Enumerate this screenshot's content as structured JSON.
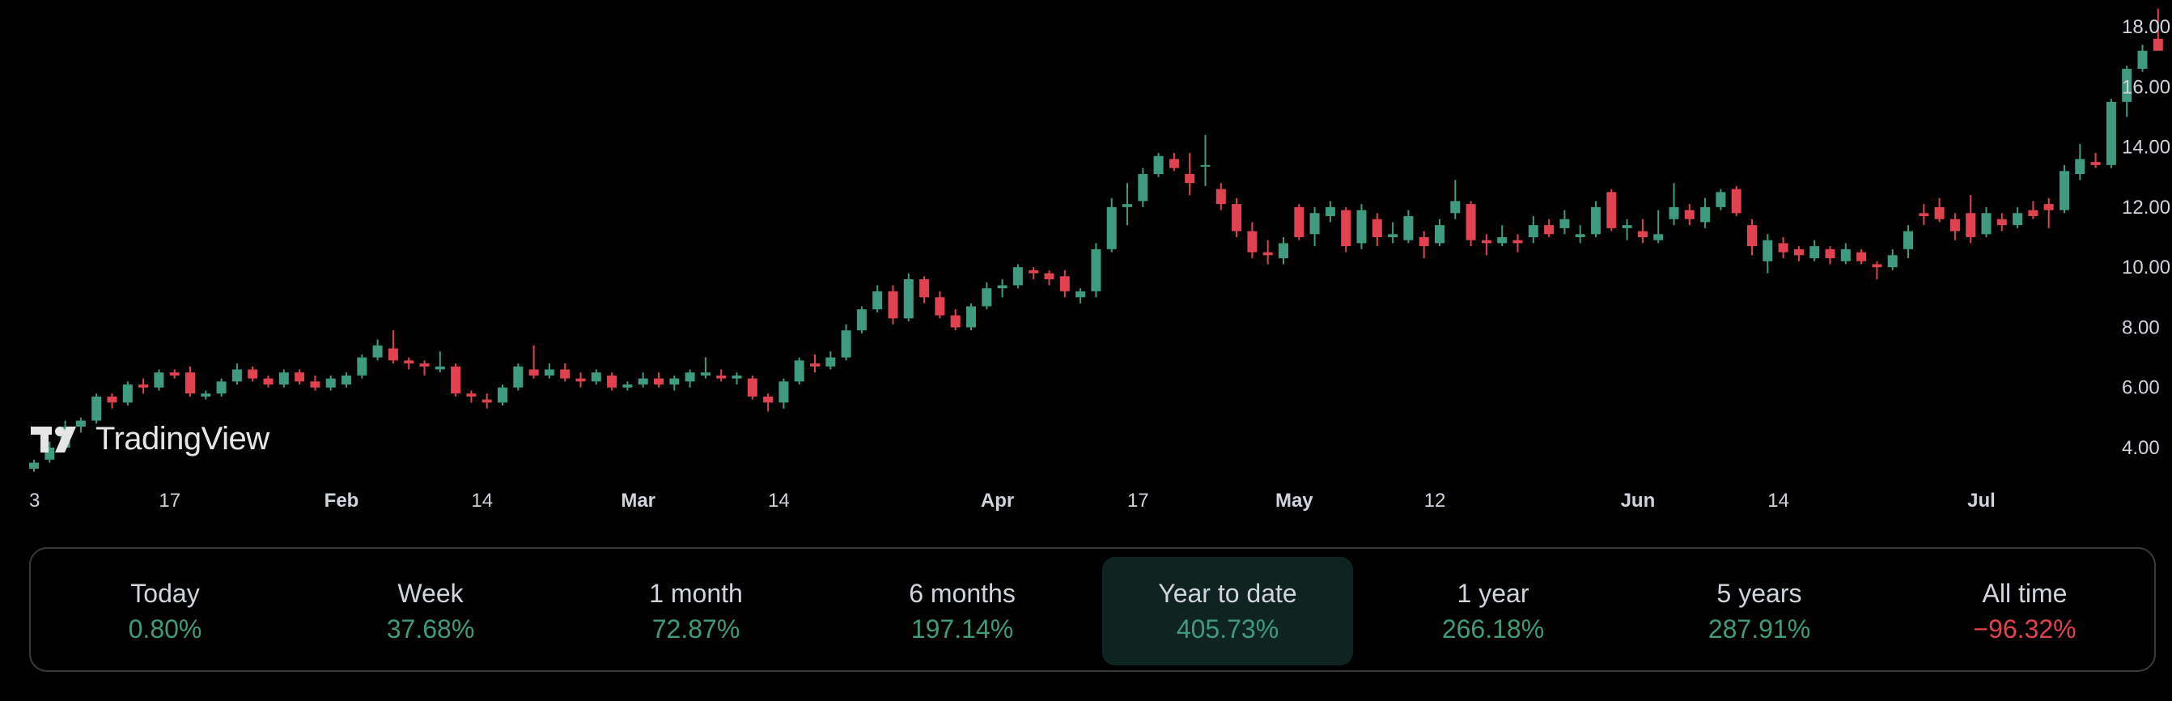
{
  "colors": {
    "up": "#3f9b7f",
    "down": "#e0434f",
    "background": "#000000",
    "text": "#d1d4dc"
  },
  "logo": {
    "text": "TradingView"
  },
  "chart_data": {
    "type": "candlestick",
    "title": "",
    "ylim": [
      3.0,
      18.8
    ],
    "y_ticks": [
      "4.00",
      "6.00",
      "8.00",
      "10.00",
      "12.00",
      "14.00",
      "16.00",
      "18.00"
    ],
    "y_tick_values": [
      4,
      6,
      8,
      10,
      12,
      14,
      16,
      18
    ],
    "x_ticks": [
      {
        "label": "3",
        "index": 0,
        "bold": false
      },
      {
        "label": "17",
        "index": 9,
        "bold": false
      },
      {
        "label": "Feb",
        "index": 20,
        "bold": true
      },
      {
        "label": "14",
        "index": 29,
        "bold": false
      },
      {
        "label": "Mar",
        "index": 39,
        "bold": true
      },
      {
        "label": "14",
        "index": 48,
        "bold": false
      },
      {
        "label": "Apr",
        "index": 62,
        "bold": true
      },
      {
        "label": "17",
        "index": 71,
        "bold": false
      },
      {
        "label": "May",
        "index": 81,
        "bold": true
      },
      {
        "label": "12",
        "index": 90,
        "bold": false
      },
      {
        "label": "Jun",
        "index": 103,
        "bold": true
      },
      {
        "label": "14",
        "index": 112,
        "bold": false
      },
      {
        "label": "Jul",
        "index": 125,
        "bold": true
      }
    ],
    "candles": [
      [
        3.3,
        3.6,
        3.2,
        3.5
      ],
      [
        3.6,
        4.2,
        3.5,
        4.0
      ],
      [
        4.0,
        4.9,
        3.9,
        4.7
      ],
      [
        4.7,
        5.0,
        4.5,
        4.9
      ],
      [
        4.9,
        5.8,
        4.8,
        5.7
      ],
      [
        5.7,
        5.8,
        5.3,
        5.5
      ],
      [
        5.5,
        6.2,
        5.4,
        6.1
      ],
      [
        6.1,
        6.3,
        5.8,
        6.0
      ],
      [
        6.0,
        6.6,
        5.9,
        6.5
      ],
      [
        6.5,
        6.6,
        6.3,
        6.4
      ],
      [
        6.5,
        6.7,
        5.7,
        5.8
      ],
      [
        5.7,
        5.9,
        5.6,
        5.8
      ],
      [
        5.8,
        6.3,
        5.7,
        6.2
      ],
      [
        6.2,
        6.8,
        6.1,
        6.6
      ],
      [
        6.6,
        6.7,
        6.2,
        6.3
      ],
      [
        6.3,
        6.4,
        6.0,
        6.1
      ],
      [
        6.1,
        6.6,
        6.0,
        6.5
      ],
      [
        6.5,
        6.6,
        6.1,
        6.2
      ],
      [
        6.2,
        6.4,
        5.9,
        6.0
      ],
      [
        6.0,
        6.4,
        5.9,
        6.3
      ],
      [
        6.1,
        6.5,
        6.0,
        6.4
      ],
      [
        6.4,
        7.1,
        6.3,
        7.0
      ],
      [
        7.0,
        7.6,
        6.9,
        7.4
      ],
      [
        7.3,
        7.9,
        6.8,
        6.9
      ],
      [
        6.9,
        7.0,
        6.6,
        6.8
      ],
      [
        6.8,
        6.9,
        6.4,
        6.7
      ],
      [
        6.6,
        7.2,
        6.5,
        6.7
      ],
      [
        6.7,
        6.8,
        5.7,
        5.8
      ],
      [
        5.8,
        5.9,
        5.5,
        5.7
      ],
      [
        5.6,
        5.8,
        5.3,
        5.5
      ],
      [
        5.5,
        6.1,
        5.4,
        6.0
      ],
      [
        6.0,
        6.8,
        5.9,
        6.7
      ],
      [
        6.6,
        7.4,
        6.3,
        6.4
      ],
      [
        6.4,
        6.8,
        6.3,
        6.6
      ],
      [
        6.6,
        6.8,
        6.2,
        6.3
      ],
      [
        6.3,
        6.5,
        6.0,
        6.2
      ],
      [
        6.2,
        6.6,
        6.1,
        6.5
      ],
      [
        6.4,
        6.5,
        5.9,
        6.0
      ],
      [
        6.0,
        6.2,
        5.9,
        6.1
      ],
      [
        6.1,
        6.5,
        6.0,
        6.3
      ],
      [
        6.3,
        6.5,
        6.0,
        6.1
      ],
      [
        6.1,
        6.4,
        5.9,
        6.3
      ],
      [
        6.2,
        6.6,
        6.0,
        6.5
      ],
      [
        6.4,
        7.0,
        6.3,
        6.5
      ],
      [
        6.4,
        6.6,
        6.2,
        6.3
      ],
      [
        6.3,
        6.5,
        6.1,
        6.4
      ],
      [
        6.3,
        6.4,
        5.6,
        5.7
      ],
      [
        5.7,
        5.8,
        5.2,
        5.5
      ],
      [
        5.5,
        6.3,
        5.3,
        6.2
      ],
      [
        6.2,
        7.0,
        6.1,
        6.9
      ],
      [
        6.8,
        7.1,
        6.5,
        6.7
      ],
      [
        6.7,
        7.2,
        6.6,
        7.0
      ],
      [
        7.0,
        8.1,
        6.9,
        7.9
      ],
      [
        7.9,
        8.7,
        7.8,
        8.6
      ],
      [
        8.6,
        9.4,
        8.5,
        9.2
      ],
      [
        9.2,
        9.4,
        8.1,
        8.3
      ],
      [
        8.3,
        9.8,
        8.2,
        9.6
      ],
      [
        9.6,
        9.7,
        8.8,
        9.0
      ],
      [
        9.0,
        9.2,
        8.3,
        8.4
      ],
      [
        8.4,
        8.6,
        7.9,
        8.0
      ],
      [
        8.0,
        8.8,
        7.9,
        8.7
      ],
      [
        8.7,
        9.5,
        8.6,
        9.3
      ],
      [
        9.3,
        9.6,
        9.0,
        9.4
      ],
      [
        9.4,
        10.1,
        9.3,
        10.0
      ],
      [
        9.9,
        10.0,
        9.6,
        9.8
      ],
      [
        9.8,
        9.9,
        9.4,
        9.6
      ],
      [
        9.7,
        9.9,
        9.0,
        9.2
      ],
      [
        9.0,
        9.3,
        8.8,
        9.2
      ],
      [
        9.2,
        10.8,
        9.0,
        10.6
      ],
      [
        10.6,
        12.3,
        10.5,
        12.0
      ],
      [
        12.0,
        12.8,
        11.4,
        12.1
      ],
      [
        12.2,
        13.3,
        12.0,
        13.1
      ],
      [
        13.1,
        13.8,
        13.0,
        13.7
      ],
      [
        13.6,
        13.8,
        13.2,
        13.3
      ],
      [
        13.1,
        13.8,
        12.4,
        12.8
      ],
      [
        13.4,
        14.4,
        12.7,
        13.4
      ],
      [
        12.6,
        12.8,
        11.9,
        12.1
      ],
      [
        12.1,
        12.3,
        11.0,
        11.2
      ],
      [
        11.2,
        11.5,
        10.3,
        10.5
      ],
      [
        10.5,
        10.9,
        10.1,
        10.4
      ],
      [
        10.3,
        11.0,
        10.1,
        10.8
      ],
      [
        12.0,
        12.1,
        10.9,
        11.0
      ],
      [
        11.1,
        12.0,
        10.7,
        11.8
      ],
      [
        11.7,
        12.2,
        11.5,
        12.0
      ],
      [
        11.9,
        12.0,
        10.5,
        10.7
      ],
      [
        10.8,
        12.1,
        10.6,
        11.9
      ],
      [
        11.6,
        11.8,
        10.7,
        11.0
      ],
      [
        11.0,
        11.5,
        10.8,
        11.1
      ],
      [
        10.9,
        11.9,
        10.8,
        11.7
      ],
      [
        11.0,
        11.2,
        10.3,
        10.7
      ],
      [
        10.8,
        11.6,
        10.7,
        11.4
      ],
      [
        11.8,
        12.9,
        11.6,
        12.2
      ],
      [
        12.1,
        12.2,
        10.7,
        10.9
      ],
      [
        10.9,
        11.1,
        10.4,
        10.8
      ],
      [
        10.8,
        11.4,
        10.7,
        11.0
      ],
      [
        10.9,
        11.1,
        10.5,
        10.8
      ],
      [
        11.0,
        11.7,
        10.8,
        11.4
      ],
      [
        11.4,
        11.6,
        11.0,
        11.1
      ],
      [
        11.3,
        11.9,
        11.1,
        11.6
      ],
      [
        11.0,
        11.4,
        10.8,
        11.1
      ],
      [
        11.1,
        12.2,
        11.0,
        12.0
      ],
      [
        12.5,
        12.6,
        11.2,
        11.3
      ],
      [
        11.3,
        11.6,
        10.9,
        11.4
      ],
      [
        11.2,
        11.6,
        10.8,
        11.0
      ],
      [
        10.9,
        11.9,
        10.8,
        11.1
      ],
      [
        11.6,
        12.8,
        11.4,
        12.0
      ],
      [
        11.9,
        12.1,
        11.4,
        11.6
      ],
      [
        11.5,
        12.3,
        11.3,
        12.0
      ],
      [
        12.0,
        12.6,
        11.9,
        12.5
      ],
      [
        12.6,
        12.7,
        11.7,
        11.8
      ],
      [
        11.4,
        11.6,
        10.4,
        10.7
      ],
      [
        10.2,
        11.1,
        9.8,
        10.9
      ],
      [
        10.8,
        11.0,
        10.3,
        10.5
      ],
      [
        10.6,
        10.7,
        10.2,
        10.4
      ],
      [
        10.3,
        10.9,
        10.2,
        10.7
      ],
      [
        10.6,
        10.7,
        10.1,
        10.3
      ],
      [
        10.2,
        10.8,
        10.1,
        10.6
      ],
      [
        10.5,
        10.6,
        10.1,
        10.2
      ],
      [
        10.1,
        10.2,
        9.6,
        10.0
      ],
      [
        10.0,
        10.6,
        9.9,
        10.4
      ],
      [
        10.6,
        11.4,
        10.3,
        11.2
      ],
      [
        11.8,
        12.1,
        11.4,
        11.7
      ],
      [
        12.0,
        12.3,
        11.5,
        11.6
      ],
      [
        11.6,
        11.8,
        10.9,
        11.2
      ],
      [
        11.8,
        12.4,
        10.8,
        11.0
      ],
      [
        11.1,
        12.0,
        11.0,
        11.8
      ],
      [
        11.6,
        11.8,
        11.2,
        11.4
      ],
      [
        11.4,
        12.0,
        11.3,
        11.8
      ],
      [
        11.9,
        12.2,
        11.6,
        11.7
      ],
      [
        12.1,
        12.3,
        11.3,
        11.9
      ],
      [
        11.9,
        13.4,
        11.8,
        13.2
      ],
      [
        13.1,
        14.1,
        12.9,
        13.6
      ],
      [
        13.5,
        13.8,
        13.3,
        13.4
      ],
      [
        13.4,
        15.6,
        13.3,
        15.5
      ],
      [
        15.5,
        16.7,
        15.0,
        16.6
      ],
      [
        16.6,
        17.4,
        16.5,
        17.2
      ],
      [
        17.6,
        18.6,
        17.3,
        17.2
      ]
    ]
  },
  "performance": {
    "periods": [
      {
        "label": "Today",
        "value": "0.80%",
        "direction": "up",
        "active": false
      },
      {
        "label": "Week",
        "value": "37.68%",
        "direction": "up",
        "active": false
      },
      {
        "label": "1 month",
        "value": "72.87%",
        "direction": "up",
        "active": false
      },
      {
        "label": "6 months",
        "value": "197.14%",
        "direction": "up",
        "active": false
      },
      {
        "label": "Year to date",
        "value": "405.73%",
        "direction": "up",
        "active": true
      },
      {
        "label": "1 year",
        "value": "266.18%",
        "direction": "up",
        "active": false
      },
      {
        "label": "5 years",
        "value": "287.91%",
        "direction": "up",
        "active": false
      },
      {
        "label": "All time",
        "value": "−96.32%",
        "direction": "down",
        "active": false
      }
    ]
  }
}
